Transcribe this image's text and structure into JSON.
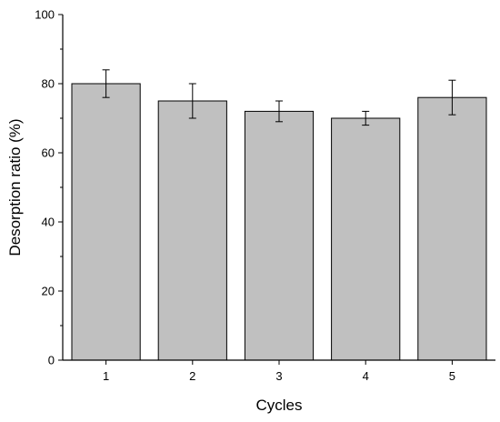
{
  "chart_data": {
    "type": "bar",
    "title": "",
    "xlabel": "Cycles",
    "ylabel": "Desorption ratio (%)",
    "categories": [
      "1",
      "2",
      "3",
      "4",
      "5"
    ],
    "values": [
      80,
      75,
      72,
      70,
      76
    ],
    "error": [
      4,
      5,
      3,
      2,
      5
    ],
    "ylim": [
      0,
      100
    ],
    "yticks": [
      "0",
      "20",
      "40",
      "60",
      "80",
      "100"
    ],
    "grid": false,
    "legend": false
  },
  "colors": {
    "bar_fill": "#c0c0c0",
    "bar_stroke": "#000000",
    "axis": "#000000",
    "error_bar": "#000000"
  }
}
